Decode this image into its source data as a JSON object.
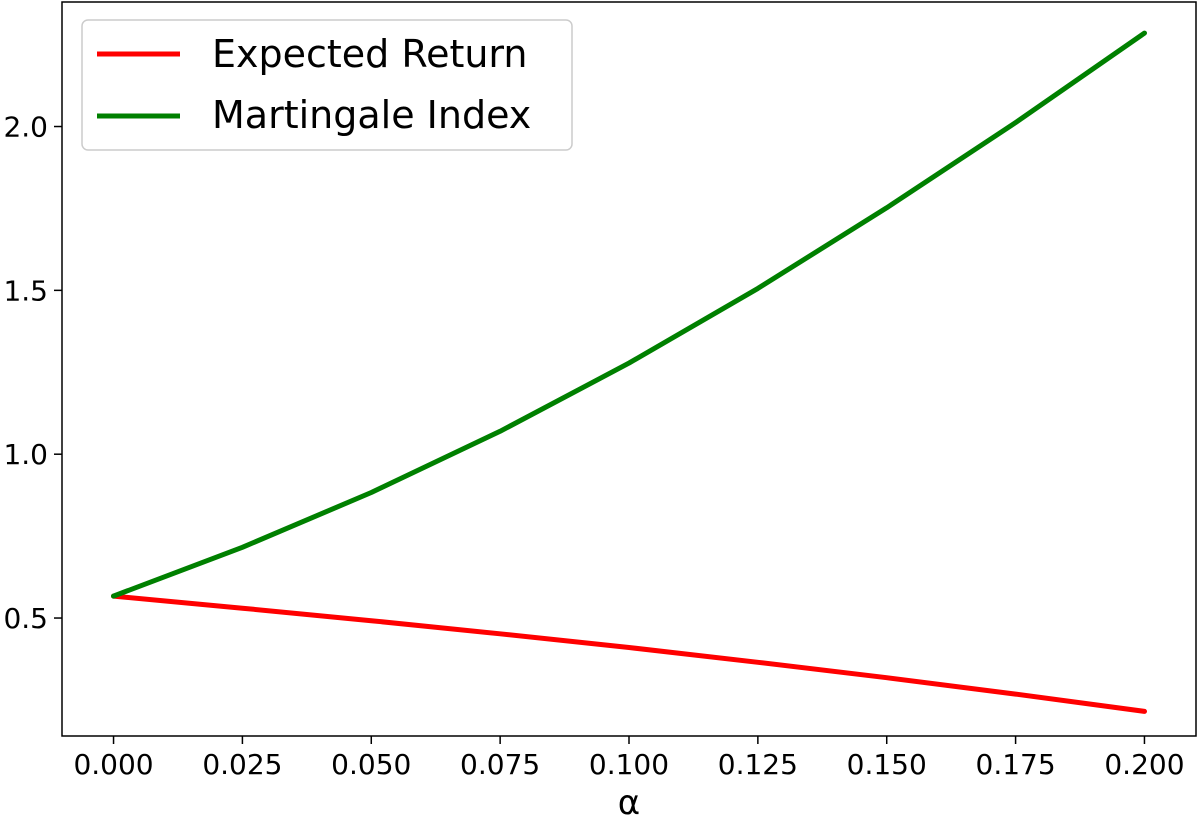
{
  "chart_data": {
    "type": "line",
    "title": "",
    "xlabel": "α",
    "ylabel": "",
    "xlim": [
      -0.01,
      0.21
    ],
    "ylim": [
      0.14,
      2.38
    ],
    "x_ticks": [
      0.0,
      0.025,
      0.05,
      0.075,
      0.1,
      0.125,
      0.15,
      0.175,
      0.2
    ],
    "x_tick_labels": [
      "0.000",
      "0.025",
      "0.050",
      "0.075",
      "0.100",
      "0.125",
      "0.150",
      "0.175",
      "0.200"
    ],
    "y_ticks": [
      0.5,
      1.0,
      1.5,
      2.0
    ],
    "y_tick_labels": [
      "0.5",
      "1.0",
      "1.5",
      "2.0"
    ],
    "grid": false,
    "legend_position": "top-left",
    "x": [
      0.0,
      0.025,
      0.05,
      0.075,
      0.1,
      0.125,
      0.15,
      0.175,
      0.2
    ],
    "series": [
      {
        "name": "Expected Return",
        "color": "#ff0000",
        "values": [
          0.567,
          0.53,
          0.492,
          0.452,
          0.41,
          0.365,
          0.318,
          0.268,
          0.215
        ]
      },
      {
        "name": "Martingale Index",
        "color": "#008000",
        "values": [
          0.567,
          0.716,
          0.883,
          1.07,
          1.278,
          1.506,
          1.752,
          2.012,
          2.285
        ]
      }
    ]
  }
}
